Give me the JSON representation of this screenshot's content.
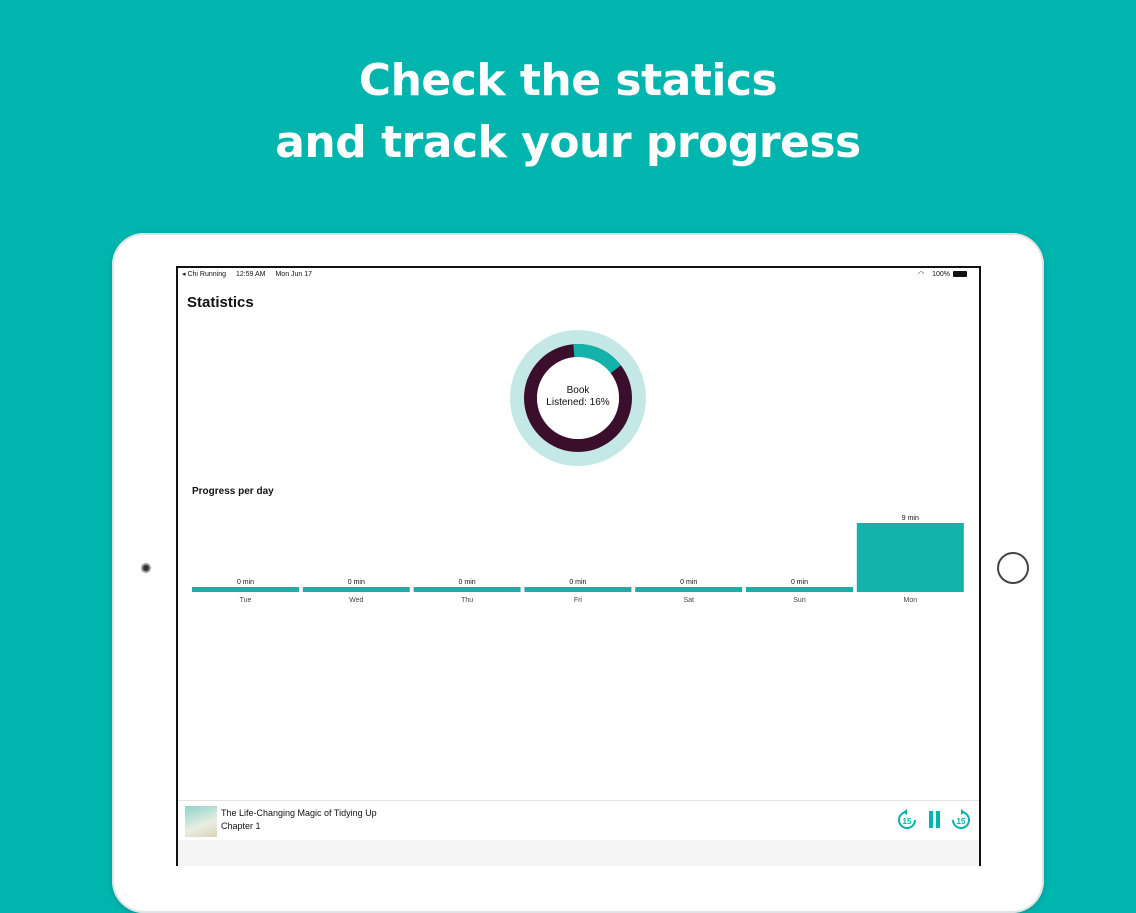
{
  "headline": {
    "line1": "Check the statics",
    "line2": "and track your progress"
  },
  "status_bar": {
    "back_app": "◂ Chi Running",
    "time": "12:59 AM",
    "date": "Mon Jun 17",
    "battery": "100%"
  },
  "page_title": "Statistics",
  "donut": {
    "label_line1": "Book",
    "label_line2": "Listened: 16%",
    "percent": 16,
    "colors": {
      "progress": "#13b3aa",
      "remaining": "#3b0f2c",
      "halo": "#c3e8e5"
    }
  },
  "progress_section": {
    "title": "Progress per day"
  },
  "chart_data": {
    "type": "bar",
    "categories": [
      "Tue",
      "Wed",
      "Thu",
      "Fri",
      "Sat",
      "Sun",
      "Mon"
    ],
    "values": [
      0,
      0,
      0,
      0,
      0,
      0,
      9
    ],
    "data_labels": [
      "0 min",
      "0 min",
      "0 min",
      "0 min",
      "0 min",
      "0 min",
      "9 min"
    ],
    "unit": "min",
    "bar_color": "#13b3aa"
  },
  "player": {
    "title": "The Life-Changing Magic of Tidying Up",
    "chapter": "Chapter 1",
    "skip_back": "15",
    "skip_forward": "15"
  },
  "accent": "#00b5ad"
}
